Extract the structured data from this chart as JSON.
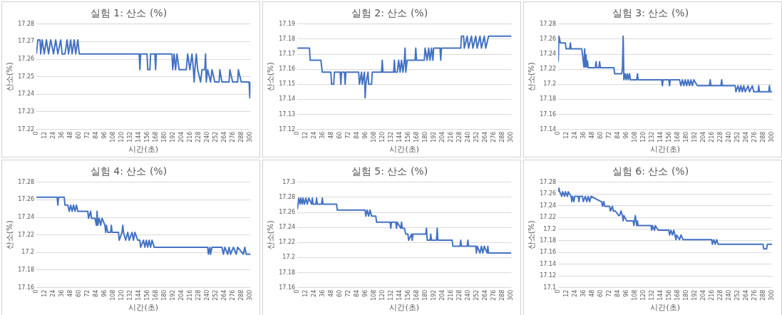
{
  "chart_data": [
    {
      "type": "line",
      "title": "실험 1: 산소 (%)",
      "xlabel": "시간(초)",
      "ylabel": "산소(%)",
      "grid": "y",
      "marker": "none",
      "xlim": [
        0,
        300
      ],
      "xticks": [
        0,
        12,
        24,
        36,
        48,
        60,
        72,
        84,
        96,
        108,
        120,
        132,
        144,
        156,
        168,
        180,
        192,
        204,
        216,
        228,
        240,
        252,
        264,
        276,
        288,
        300
      ],
      "ylim": [
        17.22,
        17.28
      ],
      "yticks": [
        17.22,
        17.23,
        17.24,
        17.25,
        17.26,
        17.27,
        17.28
      ],
      "x": [
        0,
        2,
        5,
        6,
        8,
        11,
        14,
        17,
        20,
        24,
        27,
        30,
        34,
        36,
        40,
        43,
        45,
        48,
        50,
        53,
        55,
        58,
        60,
        144,
        145,
        146,
        155,
        156,
        159,
        160,
        166,
        167,
        168,
        190,
        191,
        193,
        195,
        197,
        200,
        210,
        212,
        215,
        218,
        220,
        221,
        222,
        224,
        226,
        230,
        232,
        236,
        237,
        238,
        240,
        244,
        246,
        250,
        256,
        257,
        260,
        270,
        271,
        275,
        282,
        283,
        287,
        298,
        299,
        300
      ],
      "series": [
        {
          "color": "#4472c4",
          "values": [
            17.263,
            17.271,
            17.271,
            17.263,
            17.271,
            17.263,
            17.271,
            17.263,
            17.271,
            17.263,
            17.271,
            17.263,
            17.271,
            17.263,
            17.263,
            17.271,
            17.263,
            17.271,
            17.263,
            17.271,
            17.263,
            17.271,
            17.263,
            17.263,
            17.254,
            17.263,
            17.263,
            17.254,
            17.254,
            17.263,
            17.263,
            17.254,
            17.263,
            17.263,
            17.254,
            17.263,
            17.254,
            17.263,
            17.254,
            17.254,
            17.263,
            17.254,
            17.263,
            17.254,
            17.247,
            17.254,
            17.263,
            17.254,
            17.247,
            17.254,
            17.254,
            17.263,
            17.247,
            17.254,
            17.247,
            17.254,
            17.247,
            17.247,
            17.254,
            17.247,
            17.247,
            17.254,
            17.247,
            17.247,
            17.254,
            17.247,
            17.247,
            17.238,
            17.247
          ]
        }
      ]
    },
    {
      "type": "line",
      "title": "실험 2: 산소 (%)",
      "xlabel": "시간(초)",
      "ylabel": "산소(%)",
      "grid": "y",
      "marker": "none",
      "xlim": [
        0,
        300
      ],
      "xticks": [
        0,
        12,
        24,
        36,
        48,
        60,
        72,
        84,
        96,
        108,
        120,
        132,
        144,
        156,
        168,
        180,
        192,
        204,
        216,
        228,
        240,
        252,
        264,
        276,
        288,
        300
      ],
      "ylim": [
        17.12,
        17.19
      ],
      "yticks": [
        17.12,
        17.13,
        17.14,
        17.15,
        17.16,
        17.17,
        17.18,
        17.19
      ],
      "x": [
        0,
        17,
        18,
        33,
        35,
        47,
        48,
        51,
        52,
        60,
        61,
        62,
        66,
        67,
        68,
        86,
        87,
        90,
        91,
        94,
        95,
        96,
        99,
        100,
        104,
        105,
        106,
        118,
        119,
        120,
        135,
        136,
        137,
        140,
        142,
        144,
        146,
        148,
        150,
        151,
        152,
        154,
        156,
        165,
        166,
        167,
        178,
        179,
        182,
        184,
        186,
        188,
        190,
        191,
        192,
        200,
        201,
        202,
        229,
        230,
        233,
        234,
        238,
        240,
        244,
        246,
        250,
        252,
        256,
        258,
        262,
        264,
        268,
        300
      ],
      "series": [
        {
          "color": "#4472c4",
          "values": [
            17.174,
            17.174,
            17.166,
            17.166,
            17.158,
            17.158,
            17.15,
            17.15,
            17.158,
            17.158,
            17.15,
            17.158,
            17.158,
            17.15,
            17.158,
            17.158,
            17.15,
            17.158,
            17.15,
            17.158,
            17.141,
            17.15,
            17.158,
            17.15,
            17.15,
            17.158,
            17.158,
            17.158,
            17.166,
            17.158,
            17.158,
            17.166,
            17.158,
            17.158,
            17.166,
            17.158,
            17.166,
            17.158,
            17.166,
            17.174,
            17.158,
            17.166,
            17.166,
            17.166,
            17.174,
            17.166,
            17.166,
            17.174,
            17.166,
            17.174,
            17.166,
            17.174,
            17.166,
            17.174,
            17.174,
            17.174,
            17.166,
            17.174,
            17.174,
            17.182,
            17.182,
            17.174,
            17.182,
            17.174,
            17.182,
            17.174,
            17.182,
            17.174,
            17.182,
            17.174,
            17.182,
            17.174,
            17.182,
            17.182
          ]
        }
      ]
    },
    {
      "type": "line",
      "title": "실험 3: 산소 (%)",
      "xlabel": "시간(초)",
      "ylabel": "산소(%)",
      "grid": "y",
      "marker": "none",
      "xlim": [
        0,
        300
      ],
      "xticks": [
        0,
        12,
        24,
        36,
        48,
        60,
        72,
        84,
        96,
        108,
        120,
        132,
        144,
        156,
        168,
        180,
        192,
        204,
        216,
        228,
        240,
        252,
        264,
        276,
        288,
        300
      ],
      "ylim": [
        17.14,
        17.28
      ],
      "yticks": [
        17.14,
        17.16,
        17.18,
        17.2,
        17.22,
        17.24,
        17.26,
        17.28
      ],
      "x": [
        0,
        1,
        3,
        10,
        11,
        16,
        17,
        18,
        33,
        34,
        36,
        37,
        38,
        39,
        40,
        41,
        42,
        52,
        53,
        54,
        57,
        58,
        59,
        78,
        79,
        89,
        90,
        91,
        92,
        94,
        95,
        97,
        98,
        100,
        101,
        110,
        111,
        112,
        145,
        146,
        147,
        155,
        156,
        157,
        170,
        172,
        174,
        176,
        178,
        180,
        182,
        184,
        186,
        188,
        190,
        195,
        196,
        212,
        213,
        214,
        228,
        229,
        230,
        248,
        249,
        252,
        254,
        256,
        258,
        260,
        262,
        266,
        268,
        272,
        274,
        275,
        280,
        281,
        282,
        295,
        296,
        297,
        300
      ],
      "series": [
        {
          "color": "#4472c4",
          "values": [
            17.23,
            17.264,
            17.255,
            17.255,
            17.247,
            17.247,
            17.255,
            17.247,
            17.247,
            17.239,
            17.223,
            17.247,
            17.223,
            17.239,
            17.223,
            17.231,
            17.222,
            17.222,
            17.23,
            17.222,
            17.222,
            17.23,
            17.222,
            17.222,
            17.214,
            17.214,
            17.222,
            17.264,
            17.206,
            17.214,
            17.206,
            17.214,
            17.206,
            17.214,
            17.206,
            17.206,
            17.214,
            17.206,
            17.206,
            17.198,
            17.206,
            17.206,
            17.198,
            17.206,
            17.206,
            17.198,
            17.206,
            17.198,
            17.206,
            17.198,
            17.206,
            17.198,
            17.206,
            17.198,
            17.206,
            17.198,
            17.198,
            17.198,
            17.206,
            17.198,
            17.198,
            17.206,
            17.198,
            17.198,
            17.19,
            17.198,
            17.19,
            17.198,
            17.19,
            17.198,
            17.19,
            17.198,
            17.19,
            17.198,
            17.19,
            17.19,
            17.19,
            17.198,
            17.19,
            17.19,
            17.198,
            17.19,
            17.19
          ]
        }
      ]
    },
    {
      "type": "line",
      "title": "실험 4: 산소 (%)",
      "xlabel": "시간(초)",
      "ylabel": "산소(%)",
      "grid": "y",
      "marker": "none",
      "xlim": [
        0,
        300
      ],
      "xticks": [
        0,
        12,
        24,
        36,
        48,
        60,
        72,
        84,
        96,
        108,
        120,
        132,
        144,
        156,
        168,
        180,
        192,
        204,
        216,
        228,
        240,
        252,
        264,
        276,
        288,
        300
      ],
      "ylim": [
        17.16,
        17.28
      ],
      "yticks": [
        17.16,
        17.18,
        17.2,
        17.22,
        17.24,
        17.26,
        17.28
      ],
      "x": [
        0,
        29,
        30,
        31,
        39,
        40,
        44,
        46,
        48,
        50,
        52,
        54,
        56,
        58,
        60,
        72,
        73,
        76,
        77,
        82,
        84,
        85,
        86,
        88,
        90,
        92,
        96,
        97,
        98,
        100,
        104,
        105,
        106,
        115,
        116,
        120,
        121,
        122,
        125,
        128,
        130,
        134,
        136,
        138,
        142,
        145,
        146,
        150,
        152,
        154,
        156,
        158,
        160,
        162,
        165,
        240,
        241,
        243,
        244,
        246,
        260,
        262,
        264,
        268,
        270,
        272,
        276,
        280,
        282,
        290,
        292,
        294,
        300
      ],
      "series": [
        {
          "color": "#4472c4",
          "values": [
            17.263,
            17.263,
            17.254,
            17.263,
            17.263,
            17.254,
            17.254,
            17.247,
            17.254,
            17.247,
            17.254,
            17.247,
            17.254,
            17.247,
            17.247,
            17.247,
            17.239,
            17.247,
            17.239,
            17.239,
            17.231,
            17.247,
            17.231,
            17.239,
            17.231,
            17.239,
            17.231,
            17.223,
            17.231,
            17.223,
            17.223,
            17.231,
            17.223,
            17.223,
            17.214,
            17.223,
            17.231,
            17.223,
            17.214,
            17.223,
            17.214,
            17.223,
            17.214,
            17.223,
            17.214,
            17.214,
            17.206,
            17.214,
            17.206,
            17.214,
            17.206,
            17.214,
            17.206,
            17.214,
            17.206,
            17.206,
            17.198,
            17.206,
            17.198,
            17.206,
            17.206,
            17.198,
            17.206,
            17.198,
            17.206,
            17.198,
            17.206,
            17.198,
            17.206,
            17.198,
            17.206,
            17.198,
            17.198
          ]
        }
      ]
    },
    {
      "type": "line",
      "title": "실험 5: 산소 (%)",
      "xlabel": "시간(초)",
      "ylabel": "산소(%)",
      "grid": "y",
      "marker": "none",
      "xlim": [
        0,
        300
      ],
      "xticks": [
        0,
        12,
        24,
        36,
        48,
        60,
        72,
        84,
        96,
        108,
        120,
        132,
        144,
        156,
        168,
        180,
        192,
        204,
        216,
        228,
        240,
        252,
        264,
        276,
        288,
        300
      ],
      "ylim": [
        17.16,
        17.3
      ],
      "yticks": [
        17.16,
        17.18,
        17.2,
        17.22,
        17.24,
        17.26,
        17.28,
        17.3
      ],
      "x": [
        0,
        1,
        2,
        4,
        5,
        7,
        8,
        10,
        12,
        14,
        16,
        20,
        21,
        22,
        26,
        27,
        28,
        34,
        35,
        36,
        55,
        56,
        95,
        96,
        98,
        100,
        102,
        104,
        106,
        110,
        111,
        130,
        131,
        132,
        138,
        139,
        140,
        145,
        146,
        147,
        150,
        152,
        155,
        156,
        160,
        161,
        162,
        180,
        181,
        182,
        186,
        187,
        188,
        195,
        196,
        197,
        217,
        218,
        228,
        229,
        230,
        238,
        239,
        240,
        250,
        251,
        252,
        256,
        258,
        260,
        262,
        266,
        267,
        268,
        272,
        300
      ],
      "series": [
        {
          "color": "#4472c4",
          "values": [
            17.264,
            17.271,
            17.279,
            17.271,
            17.279,
            17.271,
            17.279,
            17.271,
            17.279,
            17.271,
            17.279,
            17.271,
            17.279,
            17.271,
            17.271,
            17.279,
            17.271,
            17.271,
            17.279,
            17.271,
            17.271,
            17.263,
            17.263,
            17.255,
            17.263,
            17.255,
            17.263,
            17.255,
            17.255,
            17.255,
            17.247,
            17.247,
            17.239,
            17.247,
            17.247,
            17.239,
            17.247,
            17.239,
            17.247,
            17.239,
            17.239,
            17.231,
            17.231,
            17.223,
            17.231,
            17.223,
            17.231,
            17.231,
            17.239,
            17.223,
            17.223,
            17.231,
            17.223,
            17.223,
            17.239,
            17.223,
            17.223,
            17.215,
            17.215,
            17.223,
            17.215,
            17.215,
            17.223,
            17.215,
            17.215,
            17.206,
            17.215,
            17.206,
            17.215,
            17.206,
            17.215,
            17.206,
            17.215,
            17.206,
            17.206,
            17.206
          ]
        }
      ]
    },
    {
      "type": "line",
      "title": "실험 6: 산소 (%)",
      "xlabel": "시간(초)",
      "ylabel": "산소(%)",
      "grid": "y",
      "marker": "none",
      "xlim": [
        0,
        300
      ],
      "xticks": [
        0,
        12,
        24,
        36,
        48,
        60,
        72,
        84,
        96,
        108,
        120,
        132,
        144,
        156,
        168,
        180,
        192,
        204,
        216,
        228,
        240,
        252,
        264,
        276,
        288,
        300
      ],
      "ylim": [
        17.1,
        17.28
      ],
      "yticks": [
        17.1,
        17.12,
        17.14,
        17.16,
        17.18,
        17.2,
        17.22,
        17.24,
        17.26,
        17.28
      ],
      "x": [
        0,
        1,
        2,
        5,
        6,
        9,
        10,
        13,
        14,
        18,
        19,
        20,
        22,
        23,
        28,
        29,
        30,
        34,
        35,
        38,
        40,
        42,
        44,
        46,
        60,
        61,
        62,
        64,
        65,
        72,
        73,
        76,
        77,
        80,
        85,
        86,
        88,
        90,
        91,
        92,
        96,
        100,
        105,
        106,
        108,
        110,
        111,
        112,
        130,
        131,
        132,
        135,
        136,
        140,
        142,
        145,
        155,
        156,
        158,
        160,
        162,
        165,
        166,
        170,
        172,
        175,
        178,
        215,
        216,
        218,
        220,
        222,
        224,
        225,
        287,
        288,
        292,
        293,
        300
      ],
      "series": [
        {
          "color": "#4472c4",
          "values": [
            17.264,
            17.27,
            17.264,
            17.256,
            17.264,
            17.256,
            17.264,
            17.256,
            17.264,
            17.256,
            17.247,
            17.256,
            17.247,
            17.256,
            17.256,
            17.247,
            17.256,
            17.256,
            17.247,
            17.256,
            17.247,
            17.256,
            17.247,
            17.256,
            17.247,
            17.247,
            17.239,
            17.247,
            17.239,
            17.239,
            17.231,
            17.239,
            17.231,
            17.231,
            17.223,
            17.223,
            17.231,
            17.223,
            17.214,
            17.223,
            17.214,
            17.214,
            17.214,
            17.206,
            17.223,
            17.206,
            17.214,
            17.206,
            17.206,
            17.198,
            17.206,
            17.198,
            17.206,
            17.198,
            17.198,
            17.198,
            17.198,
            17.19,
            17.198,
            17.19,
            17.198,
            17.182,
            17.19,
            17.182,
            17.19,
            17.182,
            17.182,
            17.182,
            17.174,
            17.182,
            17.174,
            17.182,
            17.174,
            17.174,
            17.174,
            17.166,
            17.166,
            17.174,
            17.174
          ]
        }
      ]
    }
  ]
}
